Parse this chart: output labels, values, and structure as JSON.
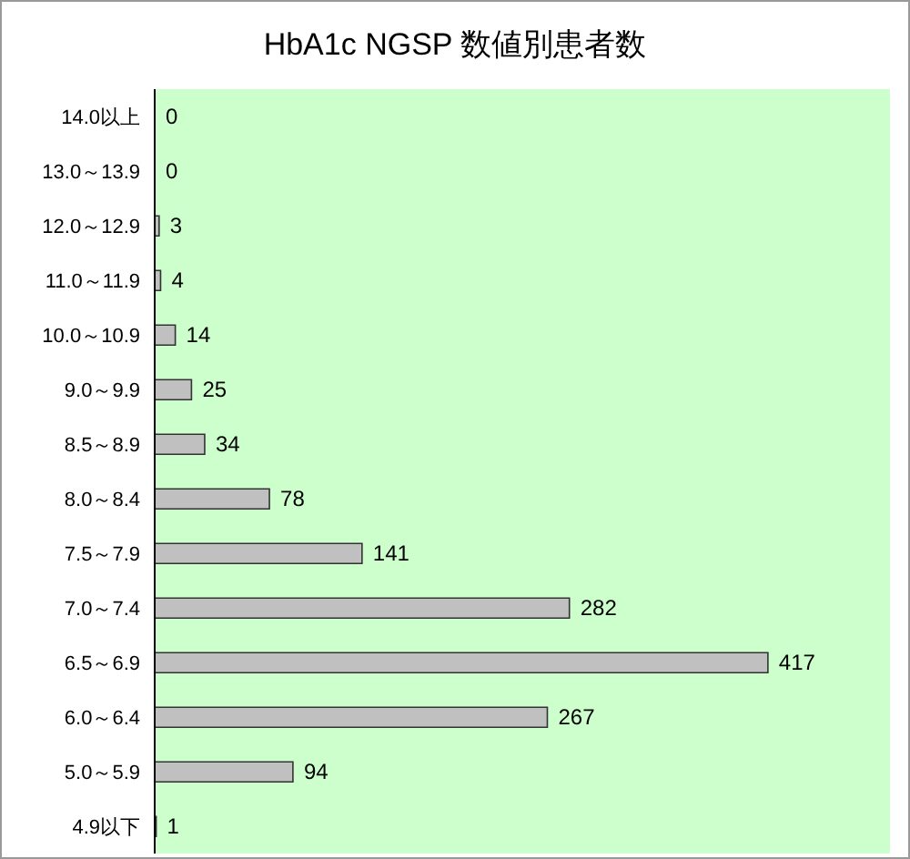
{
  "chart_data": {
    "type": "bar",
    "title": "HbA1c NGSP 数値別患者数",
    "orientation": "horizontal",
    "categories": [
      "14.0以上",
      "13.0～13.9",
      "12.0～12.9",
      "11.0～11.9",
      "10.0～10.9",
      "9.0～9.9",
      "8.5～8.9",
      "8.0～8.4",
      "7.5～7.9",
      "7.0～7.4",
      "6.5～6.9",
      "6.0～6.4",
      "5.0～5.9",
      "4.9以下"
    ],
    "values": [
      0,
      0,
      3,
      4,
      14,
      25,
      34,
      78,
      141,
      282,
      417,
      267,
      94,
      1
    ],
    "color": "#c0c0c0",
    "xlim": [
      0,
      500
    ],
    "tick_labels": "y",
    "data_labels": true
  }
}
